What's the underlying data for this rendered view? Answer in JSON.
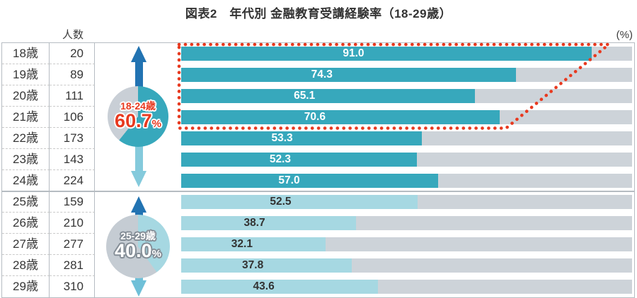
{
  "title": "図表2　年代別 金融教育受講経験率（18-29歳）",
  "axis": {
    "count_header": "人数",
    "percent_label": "(%)"
  },
  "chart_data": {
    "type": "bar",
    "orientation": "horizontal",
    "title": "図表2　年代別 金融教育受講経験率（18-29歳）",
    "unit": "%",
    "xlim": [
      0,
      100
    ],
    "grid": false,
    "categories": [
      "18歳",
      "19歳",
      "20歳",
      "21歳",
      "22歳",
      "23歳",
      "24歳",
      "25歳",
      "26歳",
      "27歳",
      "28歳",
      "29歳"
    ],
    "counts": [
      20,
      89,
      111,
      106,
      173,
      143,
      224,
      159,
      210,
      277,
      281,
      310
    ],
    "values": [
      91.0,
      74.3,
      65.1,
      70.6,
      53.3,
      52.3,
      57.0,
      52.5,
      38.7,
      32.1,
      37.8,
      43.6
    ],
    "rows": [
      {
        "age": "18歳",
        "count": "20",
        "value": 91.0,
        "label": "91.0"
      },
      {
        "age": "19歳",
        "count": "89",
        "value": 74.3,
        "label": "74.3"
      },
      {
        "age": "20歳",
        "count": "111",
        "value": 65.1,
        "label": "65.1"
      },
      {
        "age": "21歳",
        "count": "106",
        "value": 70.6,
        "label": "70.6"
      },
      {
        "age": "22歳",
        "count": "173",
        "value": 53.3,
        "label": "53.3"
      },
      {
        "age": "23歳",
        "count": "143",
        "value": 52.3,
        "label": "52.3"
      },
      {
        "age": "24歳",
        "count": "224",
        "value": 57.0,
        "label": "57.0"
      },
      {
        "age": "25歳",
        "count": "159",
        "value": 52.5,
        "label": "52.5"
      },
      {
        "age": "26歳",
        "count": "210",
        "value": 38.7,
        "label": "38.7"
      },
      {
        "age": "27歳",
        "count": "277",
        "value": 32.1,
        "label": "32.1"
      },
      {
        "age": "28歳",
        "count": "281",
        "value": 37.8,
        "label": "37.8"
      },
      {
        "age": "29歳",
        "count": "310",
        "value": 43.6,
        "label": "43.6"
      }
    ],
    "groups": [
      {
        "label": "18-24歳",
        "value": "60.7",
        "unit": "%",
        "percent": 60.7
      },
      {
        "label": "25-29歳",
        "value": "40.0",
        "unit": "%",
        "percent": 40.0
      }
    ],
    "highlight": {
      "rows": "18歳-21歳",
      "style": "red dotted outline with slanted right edge"
    },
    "legend": null
  },
  "colors": {
    "bar_teal": "#37a8bc",
    "bar_light": "#a6d8e2",
    "track_gray": "#cdd3d9",
    "highlight_red": "#e8391f",
    "arrow_up_blue": "#2273b2",
    "arrow_down_light1": "#84cadc",
    "arrow_down_light2": "#6fc0d8",
    "pie_rest_gray1": "#c9cfd6",
    "pie_rest_gray2": "#c5ccd3",
    "group1_text": "#e8391f",
    "group2_text": "#ffffff"
  }
}
